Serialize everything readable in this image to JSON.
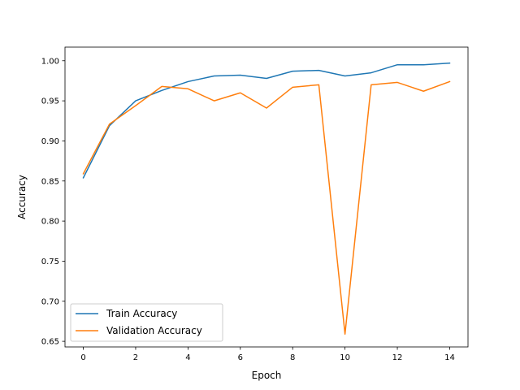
{
  "chart_data": {
    "type": "line",
    "title": "",
    "xlabel": "Epoch",
    "ylabel": "Accuracy",
    "xlim": [
      -0.7,
      14.7
    ],
    "ylim": [
      0.643,
      1.017
    ],
    "xticks": [
      0,
      2,
      4,
      6,
      8,
      10,
      12,
      14
    ],
    "yticks": [
      0.65,
      0.7,
      0.75,
      0.8,
      0.85,
      0.9,
      0.95,
      1.0
    ],
    "grid": false,
    "legend_position": "lower-left",
    "x": [
      0,
      1,
      2,
      3,
      4,
      5,
      6,
      7,
      8,
      9,
      10,
      11,
      12,
      13,
      14
    ],
    "series": [
      {
        "name": "Train Accuracy",
        "color": "#1f77b4",
        "values": [
          0.854,
          0.919,
          0.95,
          0.963,
          0.974,
          0.981,
          0.982,
          0.978,
          0.987,
          0.988,
          0.981,
          0.985,
          0.995,
          0.995,
          0.997
        ]
      },
      {
        "name": "Validation Accuracy",
        "color": "#ff7f0e",
        "values": [
          0.859,
          0.921,
          0.944,
          0.968,
          0.965,
          0.95,
          0.96,
          0.941,
          0.967,
          0.97,
          0.659,
          0.97,
          0.973,
          0.962,
          0.974
        ]
      }
    ]
  }
}
